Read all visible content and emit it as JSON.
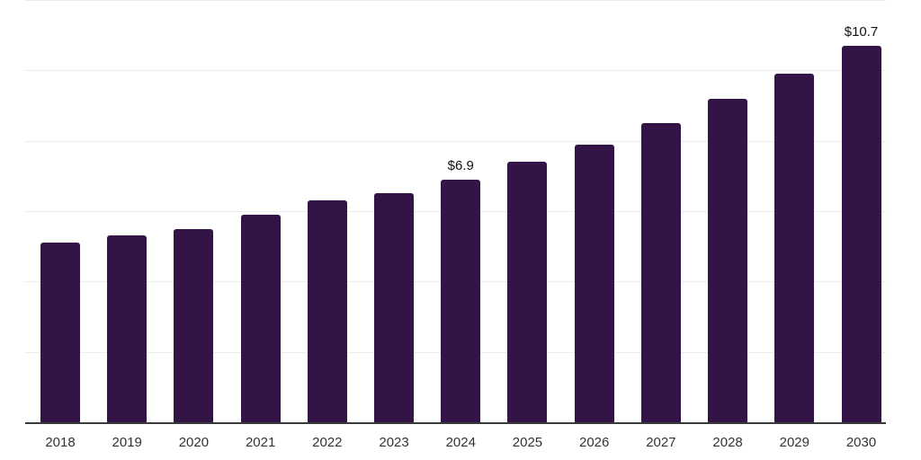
{
  "chart": {
    "background_color": "#ffffff",
    "bar_color": "#331447",
    "grid_color": "#ededed",
    "axis_color": "#3a3a3a",
    "tick_label_color": "#333333",
    "value_label_color": "#111111"
  },
  "chart_data": {
    "type": "bar",
    "title": "",
    "xlabel": "",
    "ylabel": "",
    "categories": [
      "2018",
      "2019",
      "2020",
      "2021",
      "2022",
      "2023",
      "2024",
      "2025",
      "2026",
      "2027",
      "2028",
      "2029",
      "2030"
    ],
    "values": [
      5.1,
      5.3,
      5.5,
      5.9,
      6.3,
      6.5,
      6.9,
      7.4,
      7.9,
      8.5,
      9.2,
      9.9,
      10.7
    ],
    "data_labels": [
      {
        "category": "2024",
        "text": "$6.9"
      },
      {
        "category": "2030",
        "text": "$10.7"
      }
    ],
    "ylim": [
      0,
      12
    ],
    "grid": true,
    "grid_step": 2,
    "y_tick_labels_visible": false,
    "legend_position": "none"
  }
}
